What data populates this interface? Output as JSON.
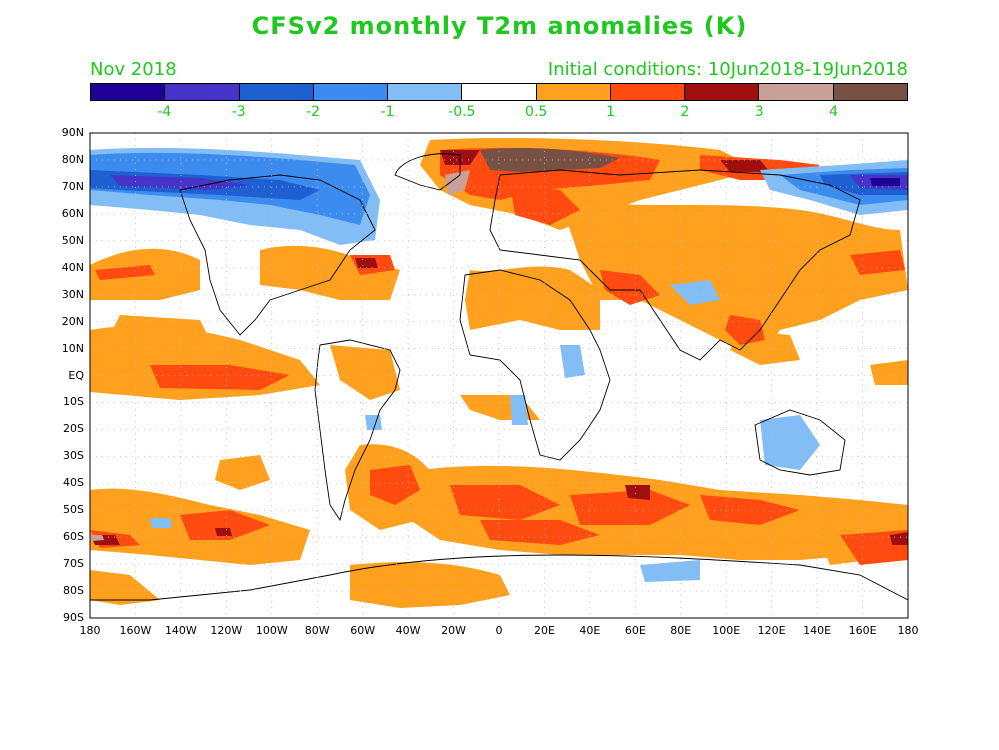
{
  "title": "CFSv2 monthly T2m anomalies (K)",
  "subtitle": {
    "left": "Nov 2018",
    "right": "Initial conditions: 10Jun2018-19Jun2018"
  },
  "colorbar": {
    "colors": [
      "#1e0096",
      "#4633c8",
      "#1e5fd2",
      "#3c8cf0",
      "#82bef5",
      "#ffffff",
      "#ffa01e",
      "#ff4b0f",
      "#a00f0f",
      "#c8a096",
      "#785044"
    ],
    "labels": [
      "-4",
      "-3",
      "-2",
      "-1",
      "-0.5",
      "0.5",
      "1",
      "2",
      "3",
      "4"
    ]
  },
  "map": {
    "lat_labels": [
      "90N",
      "80N",
      "70N",
      "60N",
      "50N",
      "40N",
      "30N",
      "20N",
      "10N",
      "EQ",
      "10S",
      "20S",
      "30S",
      "40S",
      "50S",
      "60S",
      "70S",
      "80S",
      "90S"
    ],
    "lon_labels": [
      "180",
      "160W",
      "140W",
      "120W",
      "100W",
      "80W",
      "60W",
      "40W",
      "20W",
      "0",
      "20E",
      "40E",
      "60E",
      "80E",
      "100E",
      "120E",
      "140E",
      "160E",
      "180"
    ]
  }
}
